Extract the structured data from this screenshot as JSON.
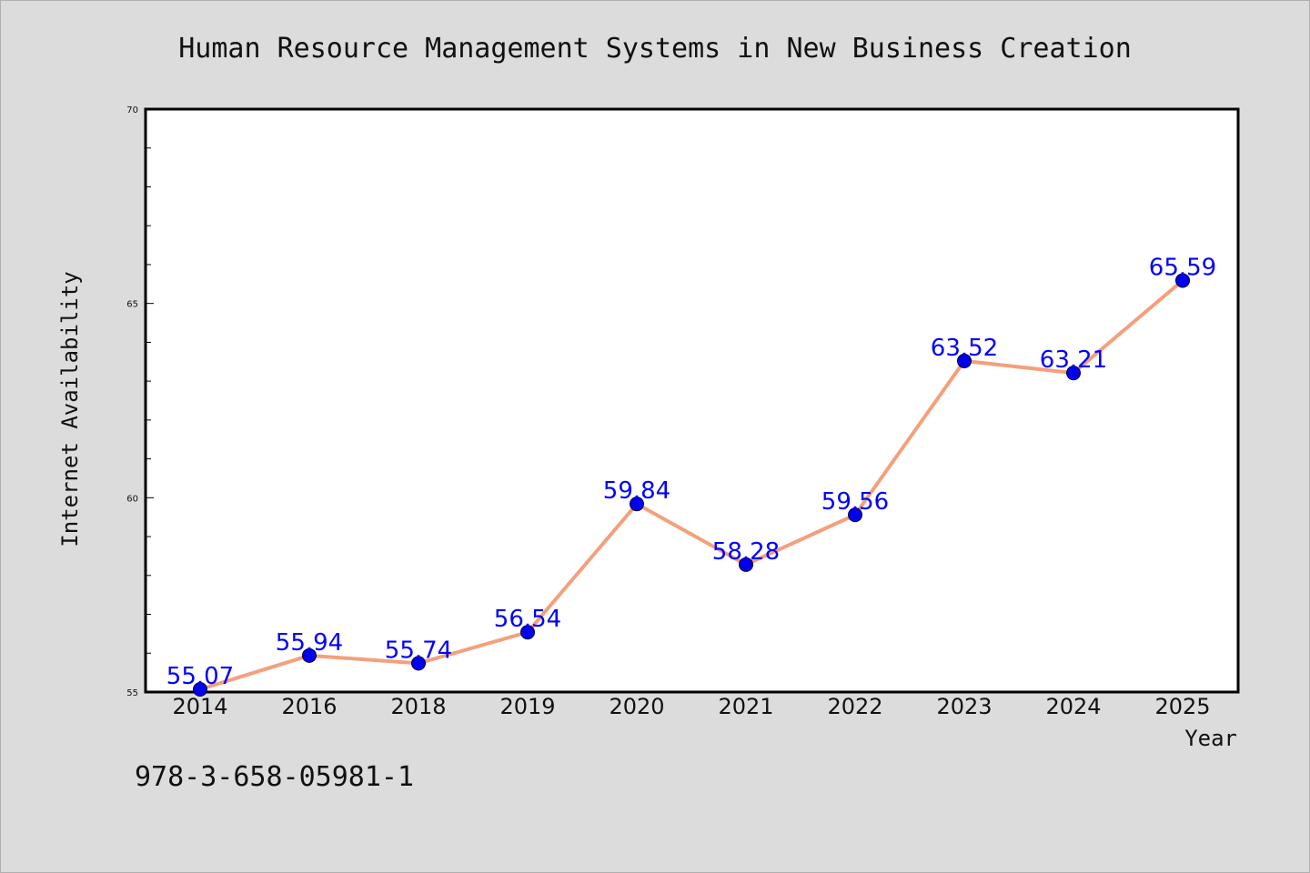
{
  "chart_data": {
    "type": "line",
    "title": "Human Resource Management Systems in New Business Creation",
    "xlabel": "Year",
    "ylabel": "Internet Availability",
    "categories": [
      "2014",
      "2016",
      "2018",
      "2019",
      "2020",
      "2021",
      "2022",
      "2023",
      "2024",
      "2025"
    ],
    "series": [
      {
        "values": [
          55.07,
          55.94,
          55.74,
          56.54,
          59.84,
          58.28,
          59.56,
          63.52,
          63.21,
          65.59
        ],
        "labels": [
          "55.07",
          "55.94",
          "55.74",
          "56.54",
          "59.84",
          "58.28",
          "59.56",
          "63.52",
          "63.21",
          "65.59"
        ],
        "line_color": "#f4a07c",
        "marker_color": "#0000ee"
      }
    ],
    "ylim": [
      55,
      70
    ],
    "yticks": [
      "55",
      "60",
      "65",
      "70"
    ],
    "grid": false,
    "legend": "none"
  },
  "footnote": "978-3-658-05981-1",
  "colors": {
    "background": "#dcdcdc",
    "plot_background": "#ffffff",
    "data_label": "#0000ff"
  }
}
